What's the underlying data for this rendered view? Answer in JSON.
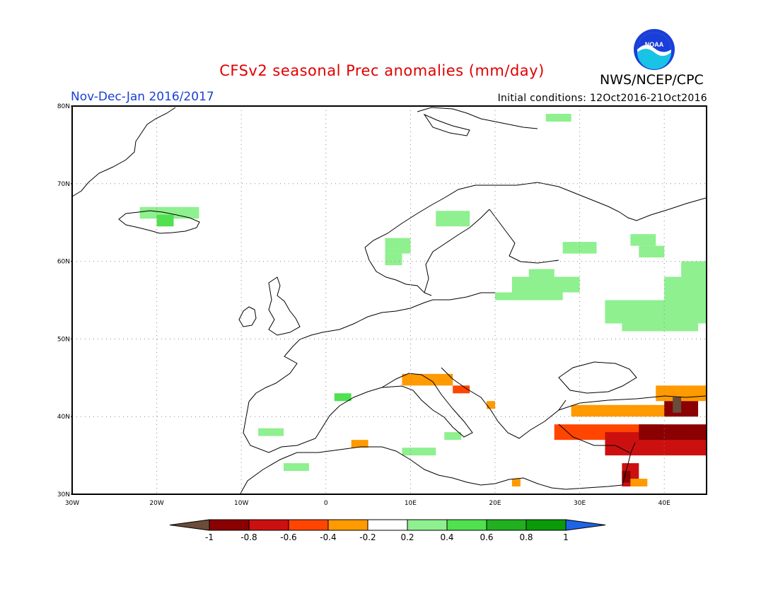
{
  "title": "CFSv2 seasonal Prec anomalies (mm/day)",
  "organization": "NWS/NCEP/CPC",
  "logo_text": "NOAA",
  "period": "Nov-Dec-Jan 2016/2017",
  "initial_conditions": "Initial conditions: 12Oct2016-21Oct2016",
  "map": {
    "lon_range": [
      -30,
      45
    ],
    "lat_range": [
      30,
      80
    ],
    "lat_labels": [
      "30N",
      "40N",
      "50N",
      "60N",
      "70N",
      "80N"
    ],
    "lon_labels": [
      "30W",
      "20W",
      "10W",
      "0",
      "10E",
      "20E",
      "30E",
      "40E"
    ],
    "grid": "dotted",
    "anomaly_cells": [
      {
        "lon": -22,
        "lat": 65.5,
        "w": 7,
        "h": 1.5,
        "value": 0.3
      },
      {
        "lon": -20,
        "lat": 64.5,
        "w": 2,
        "h": 1.5,
        "value": 0.5
      },
      {
        "lon": 26,
        "lat": 78,
        "w": 3,
        "h": 1,
        "value": 0.3
      },
      {
        "lon": 13,
        "lat": 64.5,
        "w": 4,
        "h": 2,
        "value": 0.3
      },
      {
        "lon": 7,
        "lat": 61,
        "w": 3,
        "h": 2,
        "value": 0.3
      },
      {
        "lon": 7,
        "lat": 59.5,
        "w": 2,
        "h": 1.5,
        "value": 0.3
      },
      {
        "lon": 24,
        "lat": 58,
        "w": 3,
        "h": 1,
        "value": 0.3
      },
      {
        "lon": 22,
        "lat": 56,
        "w": 8,
        "h": 2,
        "value": 0.3
      },
      {
        "lon": 20,
        "lat": 55,
        "w": 8,
        "h": 1,
        "value": 0.3
      },
      {
        "lon": 28,
        "lat": 61,
        "w": 4,
        "h": 1.5,
        "value": 0.3
      },
      {
        "lon": 36,
        "lat": 62,
        "w": 3,
        "h": 1.5,
        "value": 0.3
      },
      {
        "lon": 37,
        "lat": 60.5,
        "w": 3,
        "h": 1.5,
        "value": 0.3
      },
      {
        "lon": 42,
        "lat": 58,
        "w": 3,
        "h": 2,
        "value": 0.3
      },
      {
        "lon": 40,
        "lat": 55,
        "w": 5,
        "h": 3,
        "value": 0.3
      },
      {
        "lon": 33,
        "lat": 52,
        "w": 12,
        "h": 3,
        "value": 0.3
      },
      {
        "lon": 35,
        "lat": 51,
        "w": 9,
        "h": 1,
        "value": 0.3
      },
      {
        "lon": -8,
        "lat": 37.5,
        "w": 3,
        "h": 1,
        "value": 0.3
      },
      {
        "lon": -5,
        "lat": 33,
        "w": 3,
        "h": 1,
        "value": 0.3
      },
      {
        "lon": 1,
        "lat": 42,
        "w": 2,
        "h": 1,
        "value": 0.5
      },
      {
        "lon": 9,
        "lat": 35,
        "w": 4,
        "h": 1,
        "value": 0.3
      },
      {
        "lon": 14,
        "lat": 37,
        "w": 2,
        "h": 1,
        "value": 0.3
      },
      {
        "lon": 9,
        "lat": 44,
        "w": 6,
        "h": 1.5,
        "value": -0.3
      },
      {
        "lon": 15,
        "lat": 43,
        "w": 2,
        "h": 1,
        "value": -0.5
      },
      {
        "lon": 3,
        "lat": 36,
        "w": 2,
        "h": 1,
        "value": -0.3
      },
      {
        "lon": 19,
        "lat": 41,
        "w": 1,
        "h": 1,
        "value": -0.3
      },
      {
        "lon": 29,
        "lat": 40,
        "w": 12,
        "h": 1.5,
        "value": -0.3
      },
      {
        "lon": 27,
        "lat": 37,
        "w": 13,
        "h": 2,
        "value": -0.5
      },
      {
        "lon": 33,
        "lat": 35,
        "w": 12,
        "h": 3,
        "value": -0.6
      },
      {
        "lon": 37,
        "lat": 37,
        "w": 8,
        "h": 2,
        "value": -0.8
      },
      {
        "lon": 39,
        "lat": 42,
        "w": 6,
        "h": 2,
        "value": -0.3
      },
      {
        "lon": 40,
        "lat": 40,
        "w": 4,
        "h": 2,
        "value": -0.8
      },
      {
        "lon": 41,
        "lat": 40.5,
        "w": 1,
        "h": 2,
        "value": -1.1
      },
      {
        "lon": 35,
        "lat": 31,
        "w": 2,
        "h": 3,
        "value": -0.6
      },
      {
        "lon": 35,
        "lat": 31.5,
        "w": 1,
        "h": 1.5,
        "value": -0.8
      },
      {
        "lon": 36,
        "lat": 31,
        "w": 2,
        "h": 1,
        "value": -0.3
      },
      {
        "lon": 22,
        "lat": 31,
        "w": 1,
        "h": 1,
        "value": -0.3
      }
    ]
  },
  "colorbar": {
    "labels": [
      "-1",
      "-0.8",
      "-0.6",
      "-0.4",
      "-0.2",
      "0.2",
      "0.4",
      "0.6",
      "0.8",
      "1"
    ],
    "colors": [
      "#6b4b3a",
      "#8b0000",
      "#cc1010",
      "#ff4500",
      "#ff9a00",
      "#ffffff",
      "#8ef08e",
      "#50e050",
      "#20b020",
      "#0a9a0a",
      "#1e64e6"
    ]
  }
}
